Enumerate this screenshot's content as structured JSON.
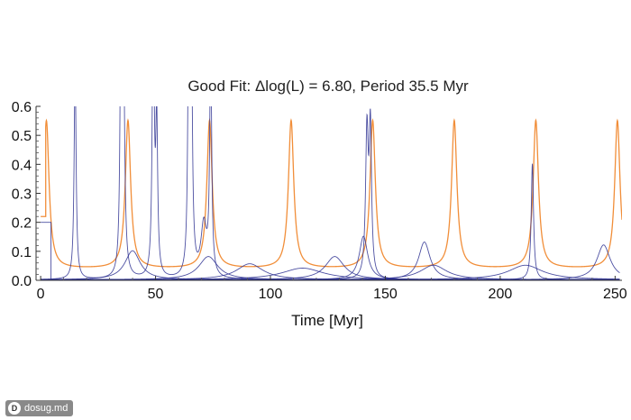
{
  "watermark": {
    "text": "dosug.md",
    "badge": "D"
  },
  "chart_data": {
    "type": "line",
    "title": "Good Fit: Δlog(L) = 6.80, Period 35.5 Myr",
    "xlabel": "Time [Myr]",
    "ylabel": "",
    "xlim": [
      -2,
      253
    ],
    "ylim": [
      0,
      0.6
    ],
    "xticks": [
      0,
      50,
      100,
      150,
      200,
      250
    ],
    "yticks": [
      0.0,
      0.1,
      0.2,
      0.3,
      0.4,
      0.5,
      0.6
    ],
    "ytick_labels": [
      "0.0",
      "0.1",
      "0.2",
      "0.3",
      "0.4",
      "0.5",
      "0.6"
    ],
    "grid": false,
    "colors": {
      "model": "#f0882e",
      "data": "#2e3192"
    },
    "series": [
      {
        "kind": "periodic",
        "color_key": "model",
        "baseline": 0.04,
        "peak": 0.55,
        "width": 1.4,
        "centers": [
          2.5,
          38,
          73.5,
          109,
          144.5,
          180,
          215.5,
          251
        ],
        "x_start": 0,
        "x_end": 253,
        "initial_segment": {
          "x_end": 2.2,
          "y": 0.22
        }
      },
      {
        "kind": "peaks",
        "color_key": "data",
        "tail": 0.002,
        "peaks": [
          {
            "center": 15,
            "amp": 0.75,
            "width": 0.5
          },
          {
            "center": 35,
            "amp": 1.0,
            "width": 0.45
          },
          {
            "center": 36,
            "amp": 0.8,
            "width": 0.6
          },
          {
            "center": 49,
            "amp": 1.0,
            "width": 0.5
          },
          {
            "center": 50.5,
            "amp": 0.52,
            "width": 0.5
          },
          {
            "center": 64.5,
            "amp": 1.0,
            "width": 0.45
          },
          {
            "center": 65.5,
            "amp": 1.0,
            "width": 0.5
          },
          {
            "center": 71,
            "amp": 0.18,
            "width": 1.5
          },
          {
            "center": 74,
            "amp": 0.8,
            "width": 0.5
          },
          {
            "center": 142,
            "amp": 0.5,
            "width": 0.7
          },
          {
            "center": 143.5,
            "amp": 0.5,
            "width": 0.6
          },
          {
            "center": 214,
            "amp": 0.4,
            "width": 0.6
          }
        ]
      },
      {
        "kind": "peaks",
        "color_key": "data",
        "tail": 0.002,
        "peaks": [
          {
            "center": 40,
            "amp": 0.1,
            "width": 4
          }
        ]
      },
      {
        "kind": "peaks",
        "color_key": "data",
        "tail": 0.002,
        "peaks": [
          {
            "center": 73,
            "amp": 0.08,
            "width": 5
          }
        ]
      },
      {
        "kind": "peaks",
        "color_key": "data",
        "tail": 0.002,
        "peaks": [
          {
            "center": 91,
            "amp": 0.055,
            "width": 7
          }
        ]
      },
      {
        "kind": "peaks",
        "color_key": "data",
        "tail": 0.002,
        "peaks": [
          {
            "center": 114,
            "amp": 0.04,
            "width": 11
          }
        ]
      },
      {
        "kind": "peaks",
        "color_key": "data",
        "tail": 0.002,
        "peaks": [
          {
            "center": 128,
            "amp": 0.08,
            "width": 5
          }
        ]
      },
      {
        "kind": "peaks",
        "color_key": "data",
        "tail": 0.002,
        "peaks": [
          {
            "center": 140.5,
            "amp": 0.15,
            "width": 2.2
          }
        ]
      },
      {
        "kind": "peaks",
        "color_key": "data",
        "tail": 0.002,
        "peaks": [
          {
            "center": 167,
            "amp": 0.13,
            "width": 3
          }
        ]
      },
      {
        "kind": "peaks",
        "color_key": "data",
        "tail": 0.002,
        "peaks": [
          {
            "center": 171,
            "amp": 0.05,
            "width": 7
          }
        ]
      },
      {
        "kind": "peaks",
        "color_key": "data",
        "tail": 0.002,
        "peaks": [
          {
            "center": 211,
            "amp": 0.05,
            "width": 9
          }
        ]
      },
      {
        "kind": "peaks",
        "color_key": "data",
        "tail": 0.002,
        "peaks": [
          {
            "center": 245,
            "amp": 0.12,
            "width": 3.5
          }
        ]
      },
      {
        "kind": "step",
        "color_key": "data",
        "points": [
          [
            0,
            0.2
          ],
          [
            4.5,
            0.2
          ],
          [
            4.5,
            0.0
          ],
          [
            14.5,
            0.0
          ]
        ]
      }
    ]
  }
}
